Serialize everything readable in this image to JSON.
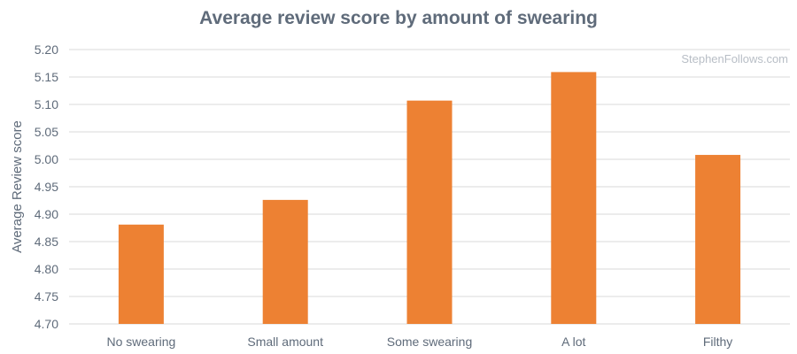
{
  "watermark": "StephenFollows.com",
  "chart_data": {
    "type": "bar",
    "title": "Average review score by amount of swearing",
    "xlabel": "",
    "ylabel": "Average Review score",
    "categories": [
      "No swearing",
      "Small amount",
      "Some swearing",
      "A lot",
      "Filthy"
    ],
    "series": [
      {
        "values": [
          4.881,
          4.926,
          5.107,
          5.159,
          5.008
        ]
      }
    ],
    "ylim": [
      4.7,
      5.2
    ],
    "yticks": [
      "4.70",
      "4.75",
      "4.80",
      "4.85",
      "4.90",
      "4.95",
      "5.00",
      "5.05",
      "5.10",
      "5.15",
      "5.20"
    ],
    "grid": true,
    "legend": "none",
    "colors": {
      "bar": "#ed8133",
      "grid": "#d9d9d9",
      "text": "#5f6b7a"
    }
  }
}
